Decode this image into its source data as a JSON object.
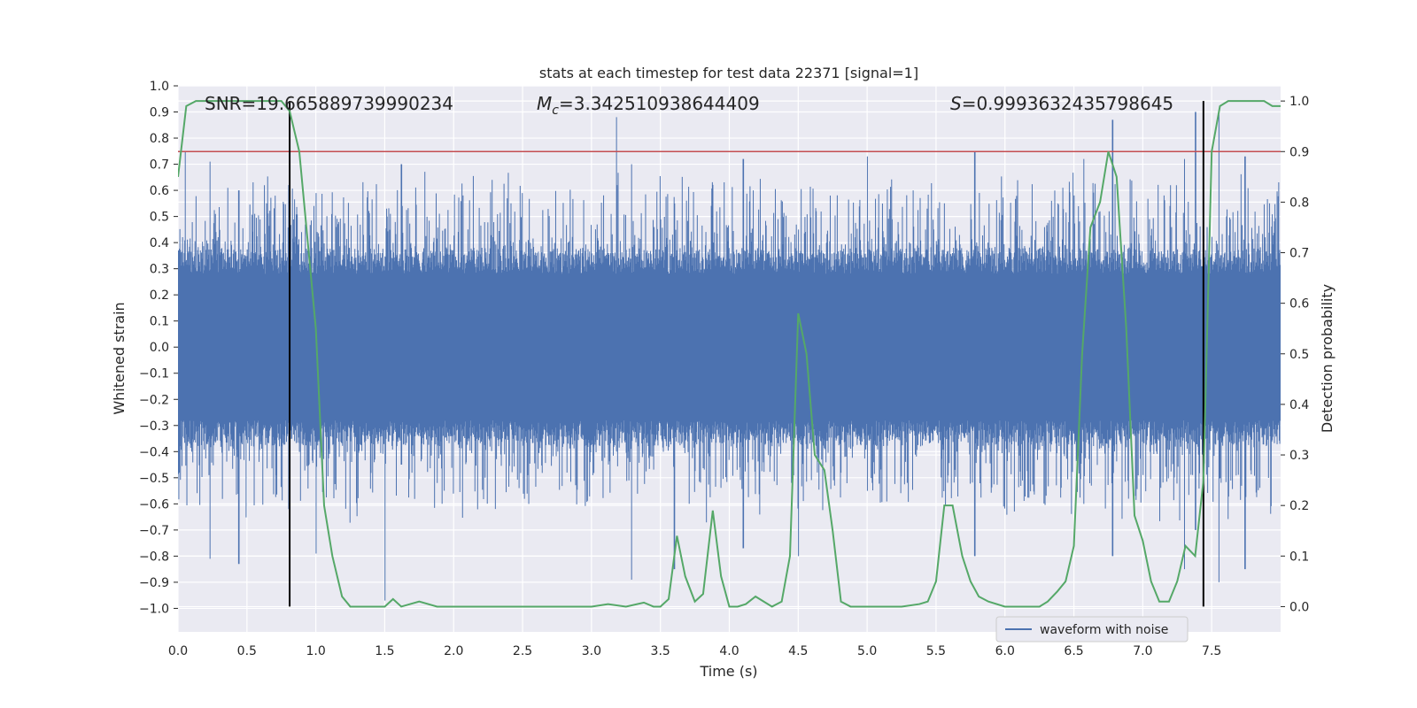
{
  "chart_data": {
    "type": "line",
    "title": "stats at each timestep for test data 22371 [signal=1]",
    "xlabel": "Time (s)",
    "ylabel": "Whitened strain",
    "y2label": "Detection probability",
    "xlim": [
      0.0,
      8.0
    ],
    "ylim": [
      -1.09,
      1.0
    ],
    "y2lim": [
      -0.05,
      1.03
    ],
    "xticks": [
      "0.0",
      "0.5",
      "1.0",
      "1.5",
      "2.0",
      "2.5",
      "3.0",
      "3.5",
      "4.0",
      "4.5",
      "5.0",
      "5.5",
      "6.0",
      "6.5",
      "7.0",
      "7.5"
    ],
    "yticks": [
      "1.0",
      "0.9",
      "0.8",
      "0.7",
      "0.6",
      "0.5",
      "0.4",
      "0.3",
      "0.2",
      "0.1",
      "0.0",
      "−0.1",
      "−0.2",
      "−0.3",
      "−0.4",
      "−0.5",
      "−0.6",
      "−0.7",
      "−0.8",
      "−0.9",
      "−1.0"
    ],
    "y2ticks": [
      "1.0",
      "0.9",
      "0.8",
      "0.7",
      "0.6",
      "0.5",
      "0.4",
      "0.3",
      "0.2",
      "0.1",
      "0.0"
    ],
    "annotations": {
      "snr": "SNR=19.665889739990234",
      "mc_symbol": "M",
      "mc_sub": "c",
      "mc_value": "=3.342510938644409",
      "s_symbol": "S",
      "s_value": "=0.9993632435798645"
    },
    "legend": {
      "label": "waveform with noise",
      "loc": "lower-right"
    },
    "threshold_line": {
      "y2": 0.9,
      "color": "#c44e52"
    },
    "vertical_lines": [
      0.81,
      7.44
    ],
    "colors": {
      "waveform": "#4c72b0",
      "probability": "#55a868",
      "vlines": "#000000",
      "background": "#eaeaf2",
      "grid": "#ffffff"
    },
    "waveform": {
      "samples": 2048,
      "seed": 22371,
      "envelope": 0.33,
      "spikes": [
        {
          "t": 0.05,
          "hi": 0.75,
          "lo": -0.3
        },
        {
          "t": 0.23,
          "hi": 0.71,
          "lo": -0.81
        },
        {
          "t": 0.44,
          "hi": 0.6,
          "lo": -0.83
        },
        {
          "t": 0.8,
          "hi": 0.62,
          "lo": -0.62
        },
        {
          "t": 1.0,
          "hi": 0.55,
          "lo": -0.79
        },
        {
          "t": 1.5,
          "hi": 0.3,
          "lo": -0.97
        },
        {
          "t": 1.62,
          "hi": 0.7,
          "lo": -0.45
        },
        {
          "t": 3.18,
          "hi": 0.88,
          "lo": -0.4
        },
        {
          "t": 3.29,
          "hi": 0.7,
          "lo": -0.89
        },
        {
          "t": 3.6,
          "hi": 0.55,
          "lo": -0.85
        },
        {
          "t": 4.1,
          "hi": 0.72,
          "lo": -0.77
        },
        {
          "t": 4.5,
          "hi": 0.45,
          "lo": -0.8
        },
        {
          "t": 5.0,
          "hi": 0.73,
          "lo": -0.55
        },
        {
          "t": 5.78,
          "hi": 0.75,
          "lo": -0.8
        },
        {
          "t": 6.57,
          "hi": 0.72,
          "lo": -0.6
        },
        {
          "t": 6.78,
          "hi": 0.87,
          "lo": -0.8
        },
        {
          "t": 7.3,
          "hi": 0.72,
          "lo": -0.85
        },
        {
          "t": 7.38,
          "hi": 0.9,
          "lo": -0.7
        },
        {
          "t": 7.55,
          "hi": 0.89,
          "lo": -0.9
        },
        {
          "t": 7.74,
          "hi": 0.73,
          "lo": -0.85
        }
      ]
    },
    "detection_probability": {
      "t": [
        0.0,
        0.06,
        0.13,
        0.4,
        0.75,
        0.78,
        0.81,
        0.88,
        1.0,
        1.06,
        1.12,
        1.19,
        1.25,
        1.38,
        1.5,
        1.56,
        1.62,
        1.75,
        1.88,
        2.0,
        2.12,
        2.5,
        2.75,
        3.0,
        3.12,
        3.25,
        3.38,
        3.45,
        3.5,
        3.56,
        3.62,
        3.68,
        3.75,
        3.81,
        3.88,
        3.94,
        4.0,
        4.06,
        4.12,
        4.19,
        4.25,
        4.31,
        4.38,
        4.44,
        4.5,
        4.56,
        4.62,
        4.69,
        4.75,
        4.81,
        4.88,
        4.94,
        5.0,
        5.25,
        5.38,
        5.44,
        5.5,
        5.56,
        5.62,
        5.69,
        5.75,
        5.81,
        5.88,
        6.0,
        6.12,
        6.25,
        6.31,
        6.38,
        6.44,
        6.5,
        6.56,
        6.62,
        6.69,
        6.75,
        6.81,
        6.88,
        6.94,
        7.0,
        7.06,
        7.12,
        7.19,
        7.25,
        7.31,
        7.38,
        7.44,
        7.5,
        7.56,
        7.62,
        7.69,
        7.75,
        7.81,
        7.88,
        7.94,
        8.0
      ],
      "p": [
        0.85,
        0.99,
        1.0,
        1.0,
        1.0,
        0.99,
        0.98,
        0.9,
        0.55,
        0.2,
        0.1,
        0.02,
        0.0,
        0.0,
        0.0,
        0.015,
        0.0,
        0.01,
        0.0,
        0.0,
        0.0,
        0.0,
        0.0,
        0.0,
        0.005,
        0.0,
        0.008,
        0.0,
        0.0,
        0.015,
        0.14,
        0.06,
        0.01,
        0.025,
        0.19,
        0.06,
        0.0,
        0.0,
        0.005,
        0.02,
        0.01,
        0.0,
        0.01,
        0.1,
        0.58,
        0.5,
        0.3,
        0.27,
        0.15,
        0.01,
        0.0,
        0.0,
        0.0,
        0.0,
        0.005,
        0.01,
        0.05,
        0.2,
        0.2,
        0.1,
        0.05,
        0.02,
        0.01,
        0.0,
        0.0,
        0.0,
        0.01,
        0.03,
        0.05,
        0.12,
        0.5,
        0.75,
        0.8,
        0.9,
        0.85,
        0.55,
        0.18,
        0.13,
        0.05,
        0.01,
        0.01,
        0.05,
        0.12,
        0.1,
        0.25,
        0.9,
        0.99,
        1.0,
        1.0,
        1.0,
        1.0,
        1.0,
        0.99,
        0.99
      ]
    }
  }
}
